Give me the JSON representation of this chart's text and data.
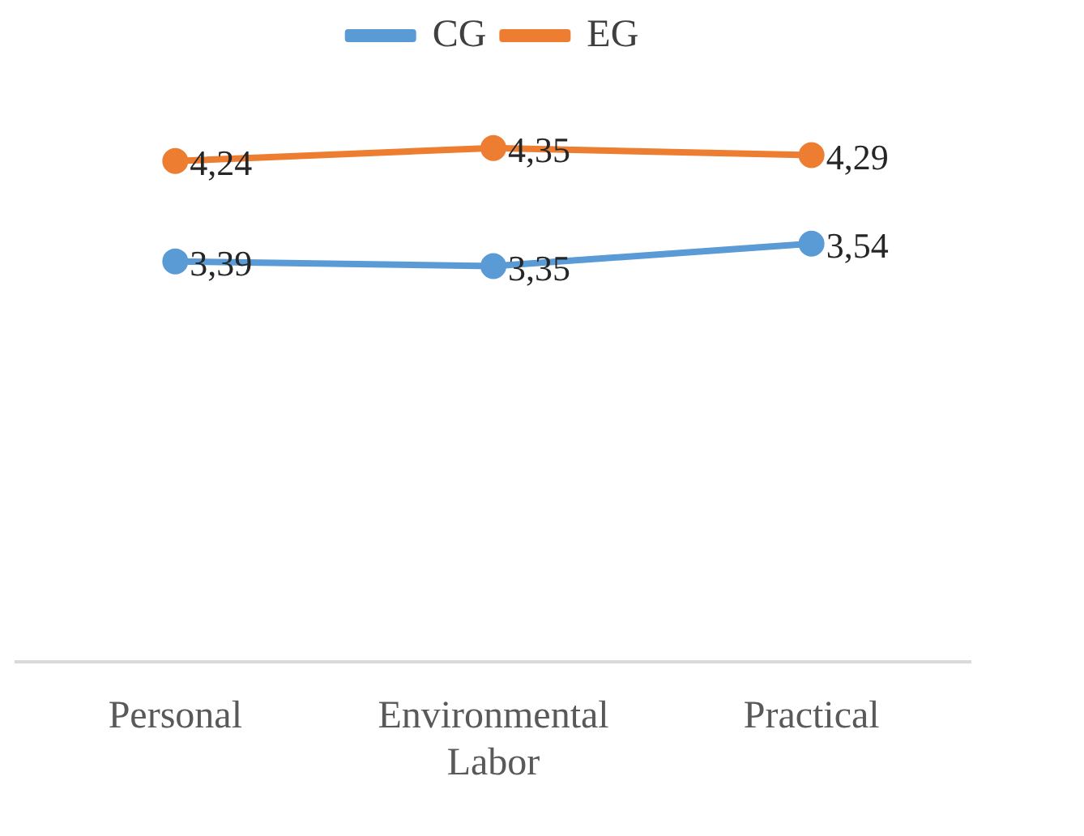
{
  "chart_data": {
    "type": "line",
    "categories": [
      "Personal",
      "Environmental Labor",
      "Practical"
    ],
    "series": [
      {
        "name": "CG",
        "color": "#5b9bd5",
        "values": [
          3.39,
          3.35,
          3.54
        ],
        "value_labels": [
          "3,39",
          "3,35",
          "3,54"
        ]
      },
      {
        "name": "EG",
        "color": "#ed7d31",
        "values": [
          4.24,
          4.35,
          4.29
        ],
        "value_labels": [
          "4,24",
          "4,35",
          "4,29"
        ]
      }
    ],
    "tick_labels": "x",
    "grid": false,
    "legend": "top",
    "marker": "circle",
    "line_style": "solid"
  }
}
